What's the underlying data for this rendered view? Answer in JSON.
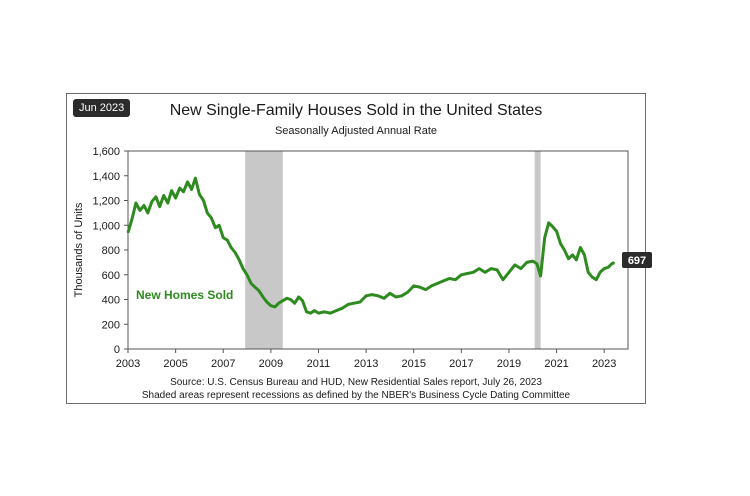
{
  "chart_data": {
    "type": "line",
    "badge": "Jun 2023",
    "title": "New Single-Family Houses Sold in the United States",
    "subtitle": "Seasonally Adjusted Annual Rate",
    "ylabel": "Thousands of Units",
    "xlabel": "",
    "ylim": [
      0,
      1600
    ],
    "yticks": [
      0,
      200,
      400,
      600,
      800,
      1000,
      1200,
      1400,
      1600
    ],
    "ytick_labels": [
      "0",
      "200",
      "400",
      "600",
      "800",
      "1,000",
      "1,200",
      "1,400",
      "1,600"
    ],
    "xlim": [
      2003,
      2024
    ],
    "xticks": [
      2003,
      2005,
      2007,
      2009,
      2011,
      2013,
      2015,
      2017,
      2019,
      2021,
      2023
    ],
    "xtick_labels": [
      "2003",
      "2005",
      "2007",
      "2009",
      "2011",
      "2013",
      "2015",
      "2017",
      "2019",
      "2021",
      "2023"
    ],
    "recessions": [
      [
        2007.92,
        2009.5
      ],
      [
        2020.08,
        2020.33
      ]
    ],
    "series": [
      {
        "name": "New Homes Sold",
        "color": "#2e8b1f",
        "x": [
          2003.0,
          2003.17,
          2003.33,
          2003.5,
          2003.67,
          2003.83,
          2004.0,
          2004.17,
          2004.33,
          2004.5,
          2004.67,
          2004.83,
          2005.0,
          2005.17,
          2005.33,
          2005.5,
          2005.67,
          2005.83,
          2006.0,
          2006.17,
          2006.33,
          2006.5,
          2006.67,
          2006.83,
          2007.0,
          2007.17,
          2007.33,
          2007.5,
          2007.67,
          2007.83,
          2008.0,
          2008.17,
          2008.33,
          2008.5,
          2008.67,
          2008.83,
          2009.0,
          2009.17,
          2009.33,
          2009.5,
          2009.67,
          2009.83,
          2010.0,
          2010.17,
          2010.33,
          2010.5,
          2010.67,
          2010.83,
          2011.0,
          2011.25,
          2011.5,
          2011.75,
          2012.0,
          2012.25,
          2012.5,
          2012.75,
          2013.0,
          2013.25,
          2013.5,
          2013.75,
          2014.0,
          2014.25,
          2014.5,
          2014.75,
          2015.0,
          2015.25,
          2015.5,
          2015.75,
          2016.0,
          2016.25,
          2016.5,
          2016.75,
          2017.0,
          2017.25,
          2017.5,
          2017.75,
          2018.0,
          2018.25,
          2018.5,
          2018.75,
          2019.0,
          2019.25,
          2019.5,
          2019.75,
          2020.0,
          2020.17,
          2020.33,
          2020.5,
          2020.67,
          2020.83,
          2021.0,
          2021.17,
          2021.33,
          2021.5,
          2021.67,
          2021.83,
          2022.0,
          2022.17,
          2022.33,
          2022.5,
          2022.67,
          2022.83,
          2023.0,
          2023.17,
          2023.33,
          2023.42
        ],
        "values": [
          940,
          1050,
          1180,
          1120,
          1160,
          1100,
          1190,
          1230,
          1150,
          1240,
          1180,
          1280,
          1220,
          1300,
          1270,
          1350,
          1290,
          1380,
          1250,
          1200,
          1100,
          1060,
          980,
          1000,
          900,
          880,
          820,
          780,
          720,
          650,
          600,
          530,
          500,
          470,
          420,
          380,
          350,
          340,
          370,
          390,
          410,
          400,
          370,
          420,
          390,
          300,
          290,
          310,
          290,
          300,
          290,
          310,
          330,
          360,
          370,
          380,
          430,
          440,
          430,
          410,
          450,
          420,
          430,
          460,
          510,
          500,
          480,
          510,
          530,
          550,
          570,
          560,
          600,
          610,
          620,
          650,
          620,
          650,
          640,
          560,
          620,
          680,
          650,
          700,
          710,
          690,
          590,
          900,
          1020,
          990,
          950,
          850,
          800,
          730,
          760,
          720,
          820,
          760,
          620,
          580,
          560,
          620,
          650,
          660,
          690,
          697
        ]
      }
    ],
    "annotations": {
      "series_label": "New Homes Sold",
      "last_value_label": "697"
    },
    "source_line1": "Source:  U.S. Census Bureau and HUD,  New  Residential Sales report, July 26, 2023",
    "source_line2": "Shaded areas represent recessions as defined by the NBER's Business Cycle Dating Committee"
  }
}
